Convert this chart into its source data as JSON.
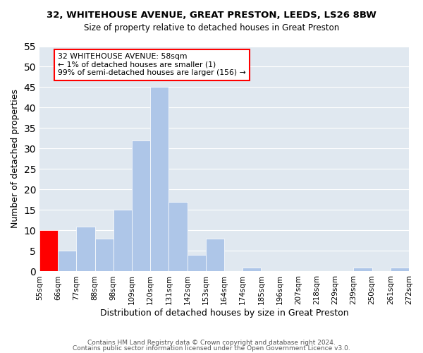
{
  "title1": "32, WHITEHOUSE AVENUE, GREAT PRESTON, LEEDS, LS26 8BW",
  "title2": "Size of property relative to detached houses in Great Preston",
  "xlabel": "Distribution of detached houses by size in Great Preston",
  "ylabel": "Number of detached properties",
  "bin_edges": [
    55,
    66,
    77,
    88,
    98,
    109,
    120,
    131,
    142,
    153,
    164,
    174,
    185,
    196,
    207,
    218,
    229,
    239,
    250,
    261,
    272
  ],
  "bin_labels": [
    "55sqm",
    "66sqm",
    "77sqm",
    "88sqm",
    "98sqm",
    "109sqm",
    "120sqm",
    "131sqm",
    "142sqm",
    "153sqm",
    "164sqm",
    "174sqm",
    "185sqm",
    "196sqm",
    "207sqm",
    "218sqm",
    "229sqm",
    "239sqm",
    "250sqm",
    "261sqm",
    "272sqm"
  ],
  "counts": [
    10,
    5,
    11,
    8,
    15,
    32,
    45,
    17,
    4,
    8,
    0,
    1,
    0,
    0,
    0,
    0,
    0,
    1,
    0,
    1
  ],
  "bar_color": "#aec6e8",
  "highlight_color": "#ff0000",
  "highlight_bin_index": 0,
  "annotation_text": "32 WHITEHOUSE AVENUE: 58sqm\n← 1% of detached houses are smaller (1)\n99% of semi-detached houses are larger (156) →",
  "annotation_box_color": "#ffffff",
  "annotation_box_edge_color": "#ff0000",
  "ylim": [
    0,
    55
  ],
  "yticks": [
    0,
    5,
    10,
    15,
    20,
    25,
    30,
    35,
    40,
    45,
    50,
    55
  ],
  "footer1": "Contains HM Land Registry data © Crown copyright and database right 2024.",
  "footer2": "Contains public sector information licensed under the Open Government Licence v3.0.",
  "background_color": "#ffffff",
  "grid_color": "#e0e8f0"
}
